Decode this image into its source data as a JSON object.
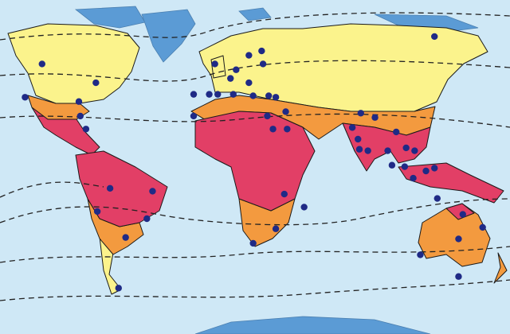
{
  "map": {
    "colors": {
      "ocean": "#cfe8f6",
      "ice": "#5b9bd5",
      "zone_yellow": "#fbf38c",
      "zone_orange": "#f39a3f",
      "zone_red": "#e23f66",
      "point": "#1f2a86"
    },
    "projection": "equirectangular",
    "points": [
      [
        -125,
        63
      ],
      [
        -87,
        50
      ],
      [
        -137,
        40
      ],
      [
        -99,
        37
      ],
      [
        -98,
        27
      ],
      [
        -94,
        18
      ],
      [
        -77,
        -23
      ],
      [
        -47,
        -25
      ],
      [
        -51,
        -44
      ],
      [
        -86,
        -39
      ],
      [
        -66,
        -57
      ],
      [
        -71,
        -92
      ],
      [
        -18,
        42
      ],
      [
        -18,
        27
      ],
      [
        -3,
        63
      ],
      [
        8,
        53
      ],
      [
        12,
        59
      ],
      [
        21,
        69
      ],
      [
        30,
        72
      ],
      [
        31,
        63
      ],
      [
        21,
        50
      ],
      [
        -7,
        42
      ],
      [
        -1,
        42
      ],
      [
        10,
        42
      ],
      [
        24,
        41
      ],
      [
        35,
        41
      ],
      [
        40,
        40
      ],
      [
        34,
        27
      ],
      [
        38,
        18
      ],
      [
        47,
        30
      ],
      [
        48,
        18
      ],
      [
        46,
        -27
      ],
      [
        60,
        -36
      ],
      [
        24,
        -61
      ],
      [
        40,
        -51
      ],
      [
        152,
        82
      ],
      [
        100,
        29
      ],
      [
        110,
        26
      ],
      [
        94,
        19
      ],
      [
        98,
        11
      ],
      [
        105,
        3
      ],
      [
        119,
        3
      ],
      [
        125,
        16
      ],
      [
        132,
        5
      ],
      [
        138,
        3
      ],
      [
        131,
        -8
      ],
      [
        137,
        -16
      ],
      [
        146,
        -11
      ],
      [
        152,
        -9
      ],
      [
        154,
        -30
      ],
      [
        172,
        -41
      ],
      [
        186,
        -50
      ],
      [
        169,
        -58
      ],
      [
        142,
        -69
      ],
      [
        169,
        -84
      ],
      [
        122,
        -7
      ],
      [
        99,
        4
      ]
    ]
  }
}
